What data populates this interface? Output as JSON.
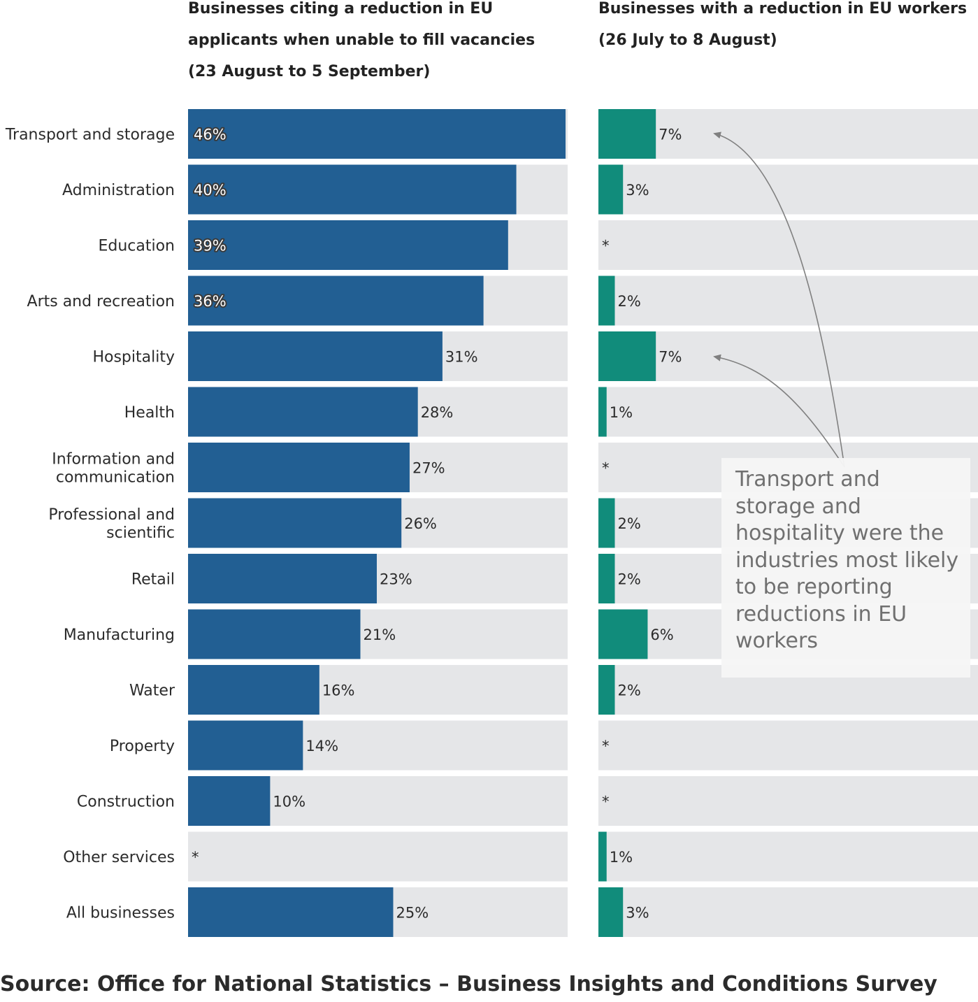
{
  "chart_data": [
    {
      "type": "bar",
      "orientation": "horizontal",
      "title": "Businesses citing a reduction in EU applicants when unable to fill vacancies (23 August to 5 September)",
      "categories": [
        "Transport and storage",
        "Administration",
        "Education",
        "Arts and recreation",
        "Hospitality",
        "Health",
        "Information and communication",
        "Professional and scientific",
        "Retail",
        "Manufacturing",
        "Water",
        "Property",
        "Construction",
        "Other services",
        "All businesses"
      ],
      "values": [
        46,
        40,
        39,
        36,
        31,
        28,
        27,
        26,
        23,
        21,
        16,
        14,
        10,
        null,
        25
      ],
      "labels": [
        "46%",
        "40%",
        "39%",
        "36%",
        "31%",
        "28%",
        "27%",
        "26%",
        "23%",
        "21%",
        "16%",
        "14%",
        "10%",
        "*",
        "25%"
      ],
      "units": "%",
      "xlim": [
        0,
        46
      ],
      "color": "#225f93"
    },
    {
      "type": "bar",
      "orientation": "horizontal",
      "title": "Businesses with a reduction in EU workers (26 July to 8 August)",
      "categories": [
        "Transport and storage",
        "Administration",
        "Education",
        "Arts and recreation",
        "Hospitality",
        "Health",
        "Information and communication",
        "Professional and scientific",
        "Retail",
        "Manufacturing",
        "Water",
        "Property",
        "Construction",
        "Other services",
        "All businesses"
      ],
      "values": [
        7,
        3,
        null,
        2,
        7,
        1,
        null,
        2,
        2,
        6,
        2,
        null,
        null,
        1,
        3
      ],
      "labels": [
        "7%",
        "3%",
        "*",
        "2%",
        "7%",
        "1%",
        "*",
        "2%",
        "2%",
        "6%",
        "2%",
        "*",
        "*",
        "1%",
        "3%"
      ],
      "units": "%",
      "xlim": [
        0,
        46
      ],
      "color": "#118c7b",
      "annotation": "Transport and storage and hospitality were the industries most likely to be reporting reductions in EU workers"
    }
  ],
  "source": "Source: Office for National Statistics – Business Insights and Conditions Survey",
  "colors": {
    "left_bar": "#225f93",
    "right_bar": "#118c7b",
    "track": "#e5e6e8",
    "arrow": "#808080"
  }
}
